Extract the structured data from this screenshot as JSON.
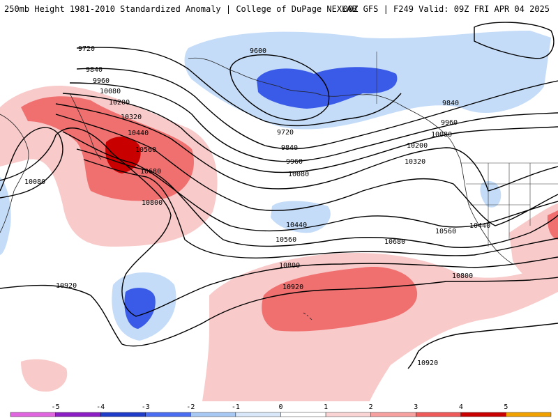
{
  "header": {
    "left": "250mb Height 1981-2010 Standardized Anomaly | College of DuPage NEXLAB",
    "right": "00Z GFS | F249 Valid: 09Z FRI APR 04 2025"
  },
  "contour_labels": [
    {
      "id": "9720-west",
      "text": "9720"
    },
    {
      "id": "9840-west",
      "text": "9840"
    },
    {
      "id": "9960-west",
      "text": "9960"
    },
    {
      "id": "10080-west",
      "text": "10080"
    },
    {
      "id": "10200-west",
      "text": "10200"
    },
    {
      "id": "10320-west",
      "text": "10320"
    },
    {
      "id": "10440-west",
      "text": "10440"
    },
    {
      "id": "10560-west",
      "text": "10560"
    },
    {
      "id": "10680-west",
      "text": "10680"
    },
    {
      "id": "10800-west",
      "text": "10800"
    },
    {
      "id": "10080-far-west",
      "text": "10080"
    },
    {
      "id": "10920-west",
      "text": "10920"
    },
    {
      "id": "9600-low",
      "text": "9600"
    },
    {
      "id": "9720-mid",
      "text": "9720"
    },
    {
      "id": "9840-mid",
      "text": "9840"
    },
    {
      "id": "9960-mid",
      "text": "9960"
    },
    {
      "id": "10080-mid",
      "text": "10080"
    },
    {
      "id": "10440-mid",
      "text": "10440"
    },
    {
      "id": "10560-mid",
      "text": "10560"
    },
    {
      "id": "10680-mid",
      "text": "10680"
    },
    {
      "id": "10800-mid",
      "text": "10800"
    },
    {
      "id": "10920-mid",
      "text": "10920"
    },
    {
      "id": "9840-east",
      "text": "9840"
    },
    {
      "id": "9960-east",
      "text": "9960"
    },
    {
      "id": "10080-east",
      "text": "10080"
    },
    {
      "id": "10200-east",
      "text": "10200"
    },
    {
      "id": "10320-east",
      "text": "10320"
    },
    {
      "id": "10440-east",
      "text": "10440"
    },
    {
      "id": "10560-east",
      "text": "10560"
    },
    {
      "id": "10800-east",
      "text": "10800"
    },
    {
      "id": "10920-south",
      "text": "10920"
    }
  ],
  "colorbar": {
    "ticks": [
      "-5",
      "-4",
      "-3",
      "-2",
      "-1",
      "0",
      "1",
      "2",
      "3",
      "4",
      "5"
    ],
    "colors": {
      "-5": "#e066e0",
      "-4": "#8b1fc4",
      "-3": "#1f3cc8",
      "-2": "#4a6cf0",
      "-1": "#a8c8f4",
      "-0": "#d8e8fa",
      "0": "#ffffff",
      "1": "#fad4d4",
      "2": "#f6a0a0",
      "3": "#ee5a5a",
      "4": "#c80000",
      "5": "#f0a000"
    }
  },
  "anomaly_colors": {
    "weak_neg": "#c4dcf8",
    "mid_neg": "#7aa4ee",
    "strong_neg": "#3a5ae8",
    "weak_pos": "#f9caca",
    "mid_pos": "#f07070",
    "strong_pos": "#c80000"
  }
}
